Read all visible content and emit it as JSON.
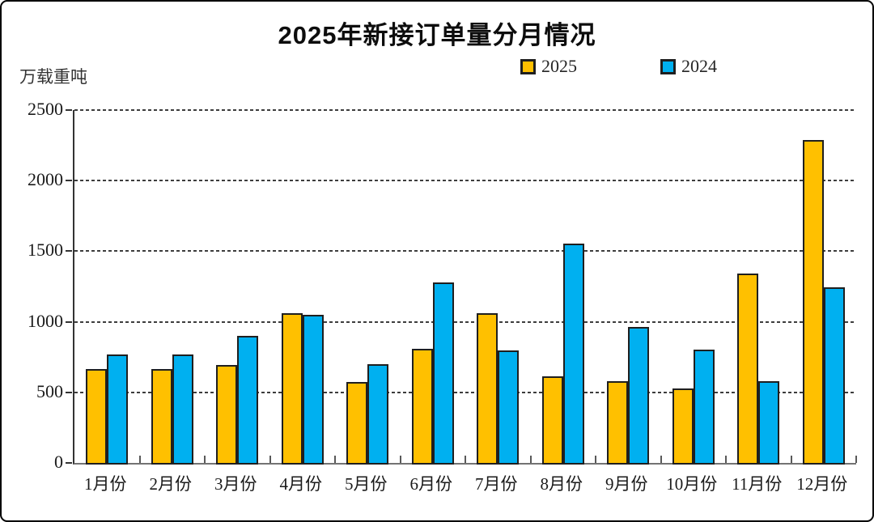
{
  "title": "2025年新接订单量分月情况",
  "unit_label": "万载重吨",
  "legend": {
    "items": [
      {
        "label": "2025",
        "color": "#FFC000"
      },
      {
        "label": "2024",
        "color": "#00B0F0"
      }
    ]
  },
  "colors": {
    "bar_2025": "#FFC000",
    "bar_2024": "#00B0F0",
    "bar_border": "#1f1f1f",
    "axis": "#595959",
    "gridline": "#3d3d3d",
    "text": "#1a1a1a"
  },
  "chart_data": {
    "type": "bar",
    "categories": [
      "1月份",
      "2月份",
      "3月份",
      "4月份",
      "5月份",
      "6月份",
      "7月份",
      "8月份",
      "9月份",
      "10月份",
      "11月份",
      "12月份"
    ],
    "series": [
      {
        "name": "2025",
        "color": "#FFC000",
        "values": [
          655,
          655,
          685,
          1050,
          560,
          795,
          1050,
          600,
          570,
          515,
          1330,
          2275
        ]
      },
      {
        "name": "2024",
        "color": "#00B0F0",
        "values": [
          755,
          755,
          890,
          1035,
          690,
          1270,
          785,
          1545,
          950,
          790,
          570,
          1230
        ]
      }
    ],
    "title": "2025年新接订单量分月情况",
    "xlabel": "",
    "ylabel": "万载重吨",
    "ylim": [
      0,
      2500
    ],
    "yticks": [
      0,
      500,
      1000,
      1500,
      2000,
      2500
    ],
    "grid": "dashed-horizontal",
    "legend_position": "top"
  }
}
